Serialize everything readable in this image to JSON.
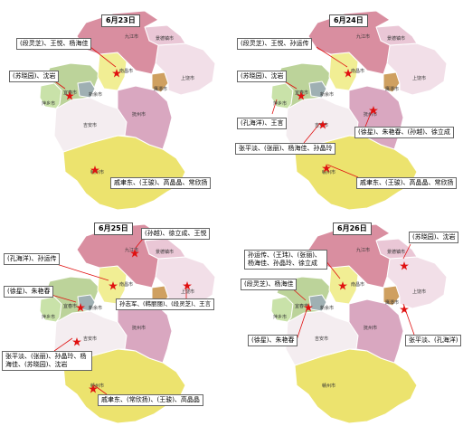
{
  "cities": {
    "jiujiang": "九江市",
    "jingdezhen": "景德镇市",
    "shangrao": "上饶市",
    "nanchang": "南昌市",
    "yingtan": "鹰潭市",
    "fuzhou": "抚州市",
    "yichun": "宜春市",
    "xinyu": "新余市",
    "pingxiang": "萍乡市",
    "jian": "吉安市",
    "ganzhou": "赣州市"
  },
  "panels": [
    {
      "date": "6月23日",
      "labels": [
        "(段灵芝)、王悦、杨海佳",
        "(苏晓园)、沈岩",
        "戚聿东、(王骏)、高晶晶、常欣扬"
      ]
    },
    {
      "date": "6月24日",
      "labels": [
        "(段灵芝)、王悦、孙运传",
        "(苏晓园)、沈岩",
        "(孔海洋)、王言",
        "(徐星)、朱艳春、(孙越)、徐立成",
        "张平淡、(张丽)、杨海佳、孙晶玲",
        "戚聿东、(王骏)、高晶晶、常欣扬"
      ]
    },
    {
      "date": "6月25日",
      "labels": [
        "(孙越)、徐立成、王悦",
        "(孔海洋)、孙运传",
        "(徐星)、朱艳春",
        "孙志军、(韩丽丽)、(段灵芝)、王言",
        "张平淡、(张丽)、孙晶玲、杨海佳、(苏晓园)、沈岩",
        "戚聿东、(常欣扬)、(王骏)、高晶晶"
      ]
    },
    {
      "date": "6月26日",
      "labels": [
        "(苏晓园)、沈岩",
        "孙运传、(王玮)、(张丽)、杨海佳、孙晶玲、徐立成",
        "(段灵芝)、杨海佳",
        "(徐星)、朱艳春",
        "张平淡、(孔海洋)"
      ]
    }
  ],
  "colors": {
    "jiujiang": "#d98ea0",
    "jingdezhen": "#eac7d6",
    "shangrao": "#f2dfe8",
    "nanchang": "#f1ee94",
    "yingtan": "#cfa060",
    "fuzhou": "#d9a7c0",
    "yichun": "#bcd39a",
    "xinyu": "#9fb0b3",
    "pingxiang": "#c9e2a9",
    "jian": "#f4edf0",
    "ganzhou": "#ece36e",
    "star": "#e01010",
    "arrow": "#e01010"
  }
}
